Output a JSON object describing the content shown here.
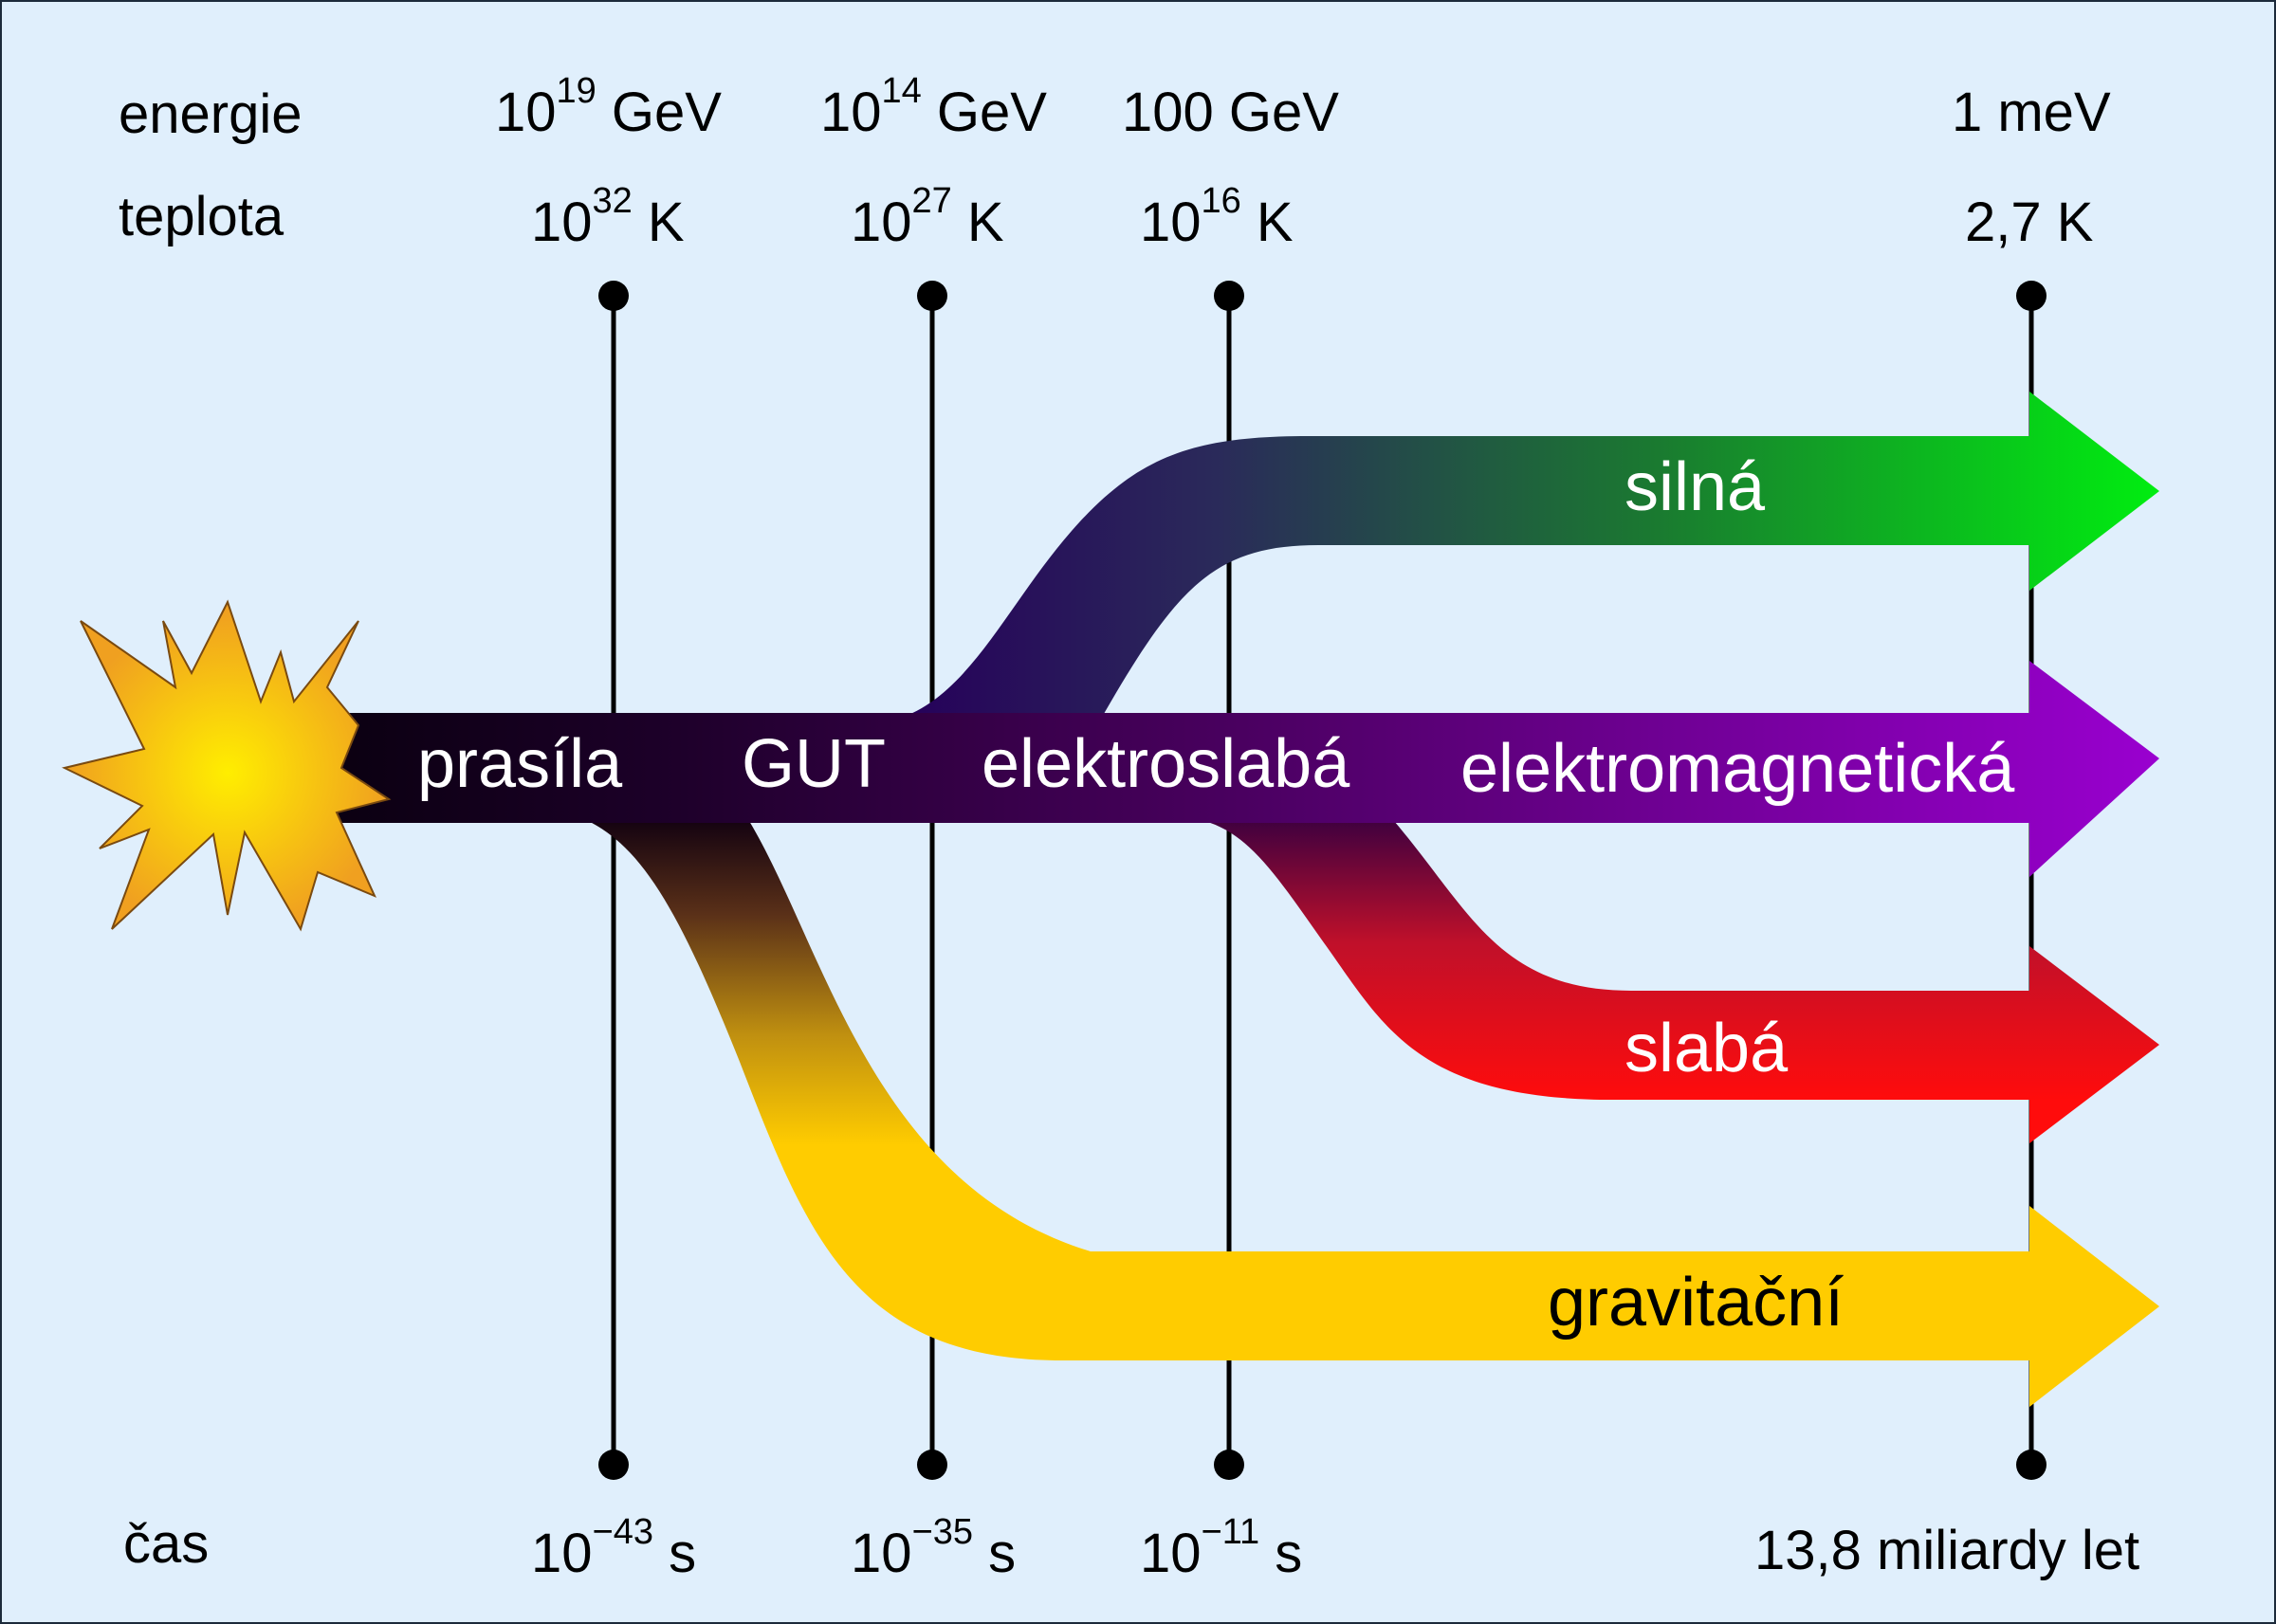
{
  "row_labels": {
    "energy": "energie",
    "temperature": "teplota",
    "time": "čas"
  },
  "epochs": [
    {
      "id": "planck",
      "energy": {
        "base": "10",
        "exp": "19",
        "unit": "GeV"
      },
      "temperature": {
        "base": "10",
        "exp": "32",
        "unit": "K"
      },
      "time": {
        "base": "10",
        "exp": "−43",
        "unit": "s"
      }
    },
    {
      "id": "gut",
      "energy": {
        "base": "10",
        "exp": "14",
        "unit": "GeV"
      },
      "temperature": {
        "base": "10",
        "exp": "27",
        "unit": "K"
      },
      "time": {
        "base": "10",
        "exp": "−35",
        "unit": "s"
      }
    },
    {
      "id": "electroweak",
      "energy": {
        "text": "100 GeV"
      },
      "temperature": {
        "base": "10",
        "exp": "16",
        "unit": "K"
      },
      "time": {
        "base": "10",
        "exp": "−11",
        "unit": "s"
      }
    },
    {
      "id": "today",
      "energy": {
        "text": "1 meV"
      },
      "temperature": {
        "text": "2,7 K"
      },
      "time": {
        "text": "13,8 miliardy let"
      }
    }
  ],
  "stage_labels": {
    "primordial": "prasíla",
    "gut": "GUT",
    "electroweak": "elektroslabá"
  },
  "forces": [
    {
      "id": "strong",
      "label": "silná",
      "color": "#00ee10"
    },
    {
      "id": "electromagnetic",
      "label": "elektromagnetická",
      "color": "#9a00d0"
    },
    {
      "id": "weak",
      "label": "slabá",
      "color": "#ff0c0c"
    },
    {
      "id": "gravity",
      "label": "gravitační",
      "color": "#ffcc00"
    }
  ],
  "colors": {
    "background": "#e0effc",
    "border": "#1c2a3a",
    "primordial": "#0a0010",
    "starburst_center": "#ffee00",
    "starburst_edge": "#f0a020"
  }
}
